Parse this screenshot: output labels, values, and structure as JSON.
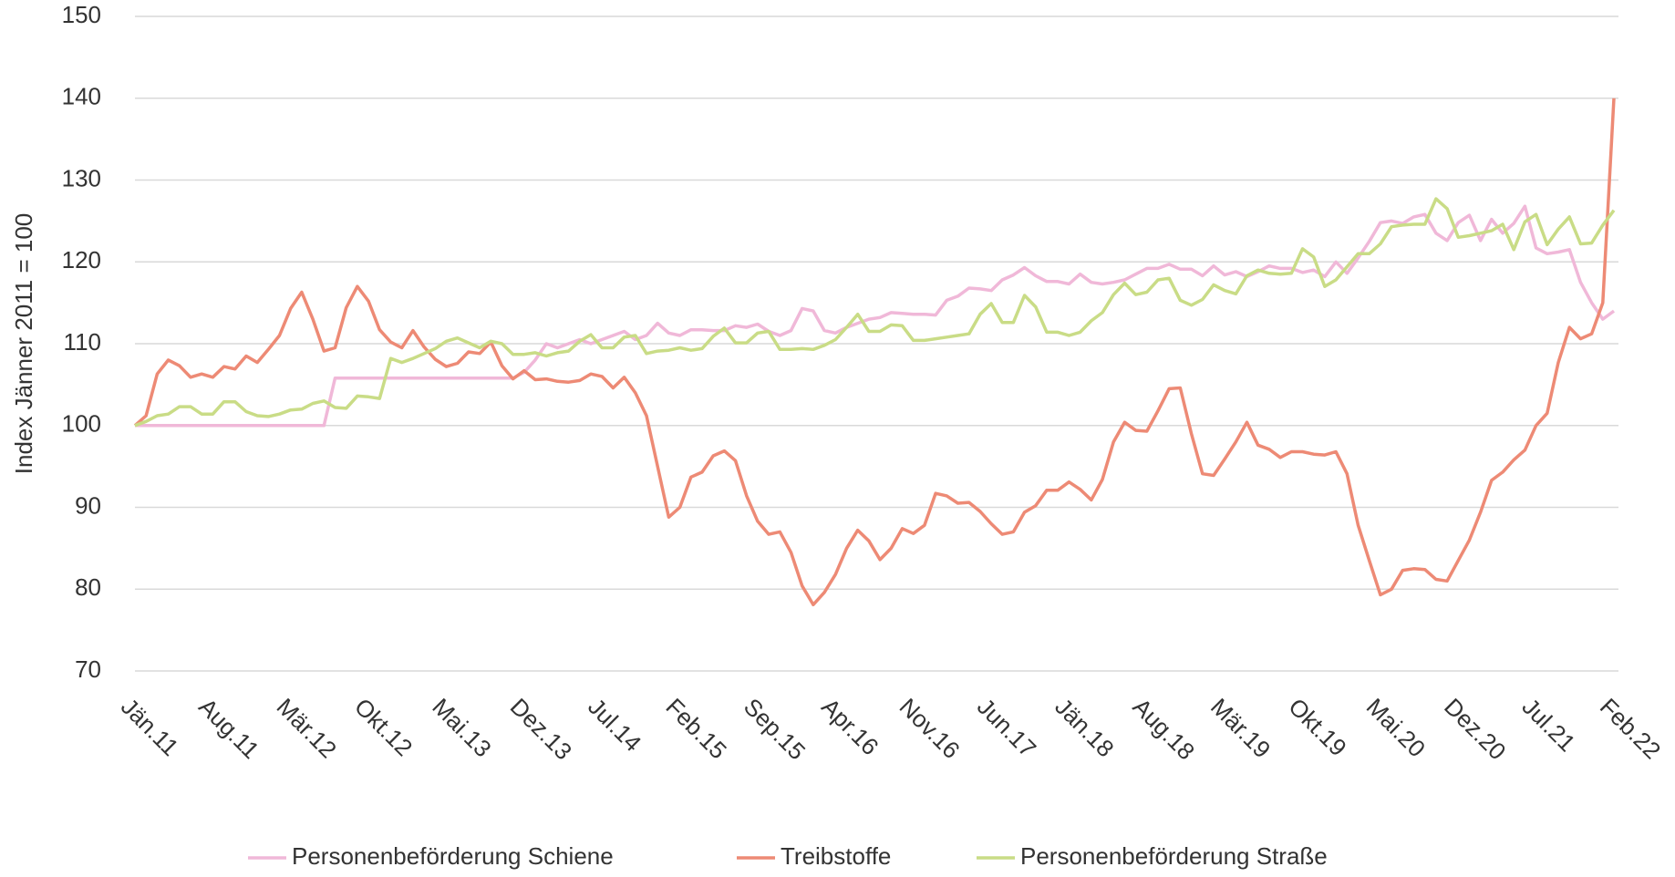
{
  "chart_data": {
    "type": "line",
    "y_label": "Index Jänner 2011 = 100",
    "categories": [
      "Jän.11",
      null,
      null,
      null,
      null,
      null,
      null,
      "Aug.11",
      null,
      null,
      null,
      null,
      null,
      null,
      "Mär.12",
      null,
      null,
      null,
      null,
      null,
      null,
      "Okt.12",
      null,
      null,
      null,
      null,
      null,
      null,
      "Mai.13",
      null,
      null,
      null,
      null,
      null,
      null,
      "Dez.13",
      null,
      null,
      null,
      null,
      null,
      null,
      "Jul.14",
      null,
      null,
      null,
      null,
      null,
      null,
      "Feb.15",
      null,
      null,
      null,
      null,
      null,
      null,
      "Sep.15",
      null,
      null,
      null,
      null,
      null,
      null,
      "Apr.16",
      null,
      null,
      null,
      null,
      null,
      null,
      "Nov.16",
      null,
      null,
      null,
      null,
      null,
      null,
      "Jun.17",
      null,
      null,
      null,
      null,
      null,
      null,
      "Jän.18",
      null,
      null,
      null,
      null,
      null,
      null,
      "Aug.18",
      null,
      null,
      null,
      null,
      null,
      null,
      "Mär.19",
      null,
      null,
      null,
      null,
      null,
      null,
      "Okt.19",
      null,
      null,
      null,
      null,
      null,
      null,
      "Mai.20",
      null,
      null,
      null,
      null,
      null,
      null,
      "Dez.20",
      null,
      null,
      null,
      null,
      null,
      null,
      "Jul.21",
      null,
      null,
      null,
      null,
      null,
      null,
      "Feb.22"
    ],
    "series": [
      {
        "name": "Personenbeförderung Schiene",
        "color": "#f0b8d8",
        "values": [
          100,
          100,
          100,
          100,
          100,
          100,
          100,
          100,
          100,
          100,
          100,
          100,
          100,
          100,
          100,
          100,
          100,
          100,
          105.8,
          105.8,
          105.8,
          105.8,
          105.8,
          105.8,
          105.8,
          105.8,
          105.8,
          105.8,
          105.8,
          105.8,
          105.8,
          105.8,
          105.8,
          105.8,
          105.8,
          106.5,
          108,
          110,
          109.5,
          110,
          110.5,
          110,
          110.5,
          111,
          111.5,
          110.5,
          111,
          112.5,
          111.3,
          111,
          111.7,
          111.7,
          111.6,
          111.6,
          112.2,
          112,
          112.4,
          111.5,
          111,
          111.6,
          114.3,
          114,
          111.6,
          111.3,
          112,
          112.5,
          113,
          113.2,
          113.8,
          113.7,
          113.6,
          113.6,
          113.5,
          115.3,
          115.8,
          116.8,
          116.7,
          116.5,
          117.8,
          118.4,
          119.3,
          118.3,
          117.6,
          117.6,
          117.3,
          118.5,
          117.5,
          117.3,
          117.5,
          117.8,
          118.5,
          119.2,
          119.2,
          119.7,
          119.1,
          119.1,
          118.3,
          119.5,
          118.4,
          118.8,
          118.2,
          118.8,
          119.5,
          119.2,
          119.2,
          118.7,
          119,
          118.2,
          120,
          118.6,
          120.5,
          122.5,
          124.8,
          125,
          124.7,
          125.5,
          125.8,
          123.5,
          122.6,
          124.8,
          125.7,
          122.6,
          125.2,
          123.5,
          124.7,
          126.8,
          121.7,
          121,
          121.2,
          121.5,
          117.5,
          115,
          113,
          114
        ]
      },
      {
        "name": "Treibstoffe",
        "color": "#ed8a75",
        "values": [
          100,
          101.2,
          106.3,
          108,
          107.3,
          105.9,
          106.3,
          105.9,
          107.2,
          106.9,
          108.5,
          107.7,
          109.3,
          111,
          114.3,
          116.3,
          113,
          109.1,
          109.5,
          114.4,
          117,
          115.2,
          111.7,
          110.2,
          109.5,
          111.6,
          109.6,
          108.1,
          107.2,
          107.6,
          109,
          108.8,
          110.2,
          107.3,
          105.7,
          106.7,
          105.6,
          105.7,
          105.4,
          105.3,
          105.5,
          106.3,
          106,
          104.6,
          105.9,
          104,
          101.2,
          95,
          88.8,
          90,
          93.7,
          94.3,
          96.3,
          96.9,
          95.7,
          91.4,
          88.3,
          86.7,
          87,
          84.5,
          80.4,
          78.1,
          79.6,
          81.8,
          85,
          87.2,
          85.9,
          83.6,
          85,
          87.4,
          86.8,
          87.8,
          91.7,
          91.4,
          90.5,
          90.6,
          89.5,
          88,
          86.7,
          87,
          89.4,
          90.2,
          92.1,
          92.1,
          93.1,
          92.2,
          90.9,
          93.4,
          98,
          100.4,
          99.4,
          99.3,
          101.8,
          104.5,
          104.6,
          99,
          94.1,
          93.9,
          95.9,
          98,
          100.4,
          97.6,
          97.1,
          96.1,
          96.8,
          96.8,
          96.5,
          96.4,
          96.8,
          94.1,
          87.8,
          83.5,
          79.3,
          80,
          82.3,
          82.5,
          82.4,
          81.2,
          81,
          83.5,
          86,
          89.4,
          93.3,
          94.3,
          95.8,
          97,
          100,
          101.5,
          107.7,
          112,
          110.6,
          111.2,
          115,
          140
        ]
      },
      {
        "name": "Personenbeförderung Straße",
        "color": "#c9dc86",
        "values": [
          100,
          100.5,
          101.2,
          101.4,
          102.3,
          102.3,
          101.4,
          101.4,
          102.9,
          102.9,
          101.7,
          101.2,
          101.1,
          101.4,
          101.9,
          102,
          102.7,
          103,
          102.2,
          102.1,
          103.6,
          103.5,
          103.3,
          108.2,
          107.7,
          108.2,
          108.8,
          109.4,
          110.3,
          110.7,
          110.1,
          109.5,
          110.3,
          110,
          108.7,
          108.7,
          108.9,
          108.5,
          108.9,
          109.1,
          110.3,
          111.1,
          109.5,
          109.5,
          110.8,
          111,
          108.8,
          109.1,
          109.2,
          109.5,
          109.2,
          109.4,
          110.9,
          111.9,
          110.1,
          110.1,
          111.3,
          111.5,
          109.3,
          109.3,
          109.4,
          109.3,
          109.8,
          110.5,
          112,
          113.6,
          111.5,
          111.5,
          112.3,
          112.2,
          110.4,
          110.4,
          110.6,
          110.8,
          111,
          111.2,
          113.6,
          114.9,
          112.6,
          112.6,
          115.9,
          114.5,
          111.4,
          111.4,
          111,
          111.4,
          112.8,
          113.8,
          116,
          117.4,
          116,
          116.3,
          117.8,
          118,
          115.3,
          114.7,
          115.4,
          117.2,
          116.5,
          116.1,
          118.3,
          119,
          118.6,
          118.5,
          118.6,
          121.6,
          120.6,
          117,
          117.8,
          119.4,
          121,
          121,
          122.2,
          124.3,
          124.5,
          124.6,
          124.6,
          127.7,
          126.5,
          123,
          123.2,
          123.5,
          123.8,
          124.6,
          121.5,
          124.9,
          125.8,
          122.1,
          124,
          125.5,
          122.2,
          122.3,
          124.5,
          126.3
        ]
      }
    ],
    "ylim": [
      70,
      150
    ],
    "yticks": [
      70,
      80,
      90,
      100,
      110,
      120,
      130,
      140,
      150
    ],
    "grid": true,
    "legend": "bottom"
  }
}
